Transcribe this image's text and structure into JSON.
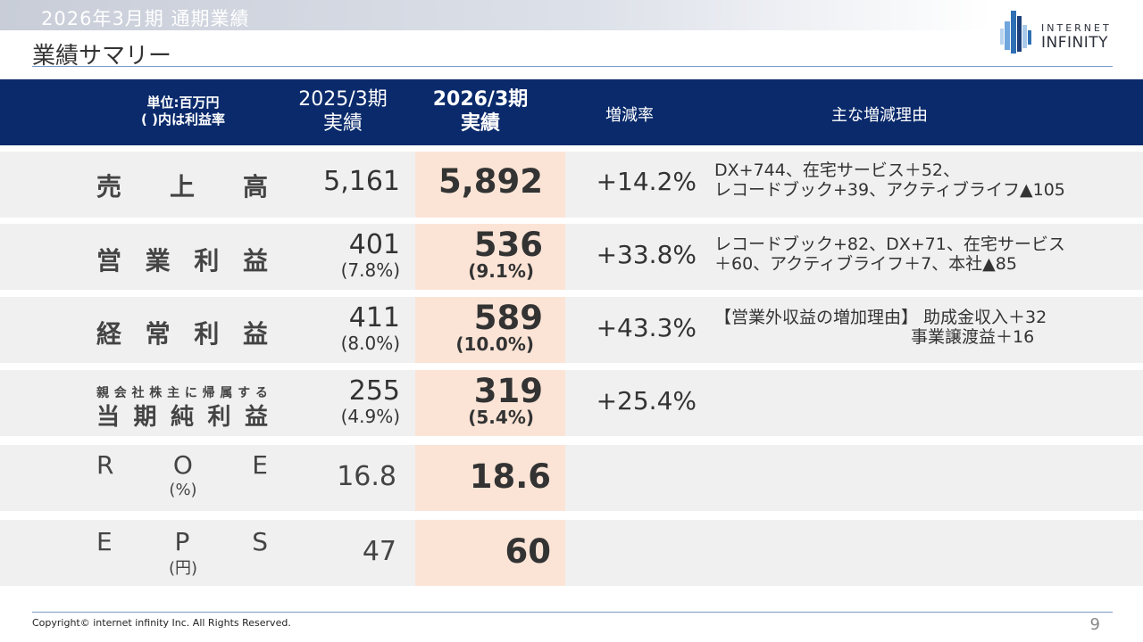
{
  "slide": {
    "period_title": "2026年3月期  通期業績",
    "page_title": "業績サマリー",
    "logo": {
      "line1": "INTERNET",
      "line2": "INFINITY"
    },
    "copyright": "Copyright© internet infinity Inc. All Rights Reserved.",
    "page_number": "9"
  },
  "table": {
    "header": {
      "unit_line1": "単位:百万円",
      "unit_line2": "(  )内は利益率",
      "col_2025_line1": "2025/3期",
      "col_2025_line2": "実績",
      "col_2026_line1": "2026/3期",
      "col_2026_line2": "実績",
      "rate": "増減率",
      "reason": "主な増減理由"
    },
    "rows": [
      {
        "label_chars": [
          "売",
          "上",
          "高"
        ],
        "v2025": "5,161",
        "v2026": "5,892",
        "rate": "+14.2%",
        "reason_line1": "DX+744、在宅サービス＋52、",
        "reason_line2": "レコードブック+39、アクティブライフ▲105"
      },
      {
        "label_chars": [
          "営",
          "業",
          "利",
          "益"
        ],
        "v2025": "401",
        "m2025": "(7.8%)",
        "v2026": "536",
        "m2026": "(9.1%)",
        "rate": "+33.8%",
        "reason_line1": "レコードブック+82、DX+71、在宅サービス",
        "reason_line2": "＋60、アクティブライフ＋7、本社▲85"
      },
      {
        "label_chars": [
          "経",
          "常",
          "利",
          "益"
        ],
        "v2025": "411",
        "m2025": "(8.0%)",
        "v2026": "589",
        "m2026": "(10.0%)",
        "rate": "+43.3%",
        "reason_line1": "【営業外収益の増加理由】 助成金収入＋32",
        "reason_line2": "事業譲渡益＋16"
      },
      {
        "label_top_chars": [
          "親",
          "会",
          "社",
          "株",
          "主",
          "に",
          "帰",
          "属",
          "す",
          "る"
        ],
        "label_chars": [
          "当",
          "期",
          "純",
          "利",
          "益"
        ],
        "v2025": "255",
        "m2025": "(4.9%)",
        "v2026": "319",
        "m2026": "(5.4%)",
        "rate": "+25.4%"
      },
      {
        "label_chars": [
          "R",
          "O",
          "E"
        ],
        "label_sub": "(%)",
        "v2025": "16.8",
        "v2026": "18.6"
      },
      {
        "label_chars": [
          "E",
          "P",
          "S"
        ],
        "label_sub": "(円)",
        "v2025": "47",
        "v2026": "60"
      }
    ]
  },
  "colors": {
    "header_bg": "#0a2a6b",
    "row_bg": "#f0f0f0",
    "highlight_col": "#fbe4d6",
    "rule": "#7a9cc8",
    "logo_blue": "#2f6fb3"
  }
}
